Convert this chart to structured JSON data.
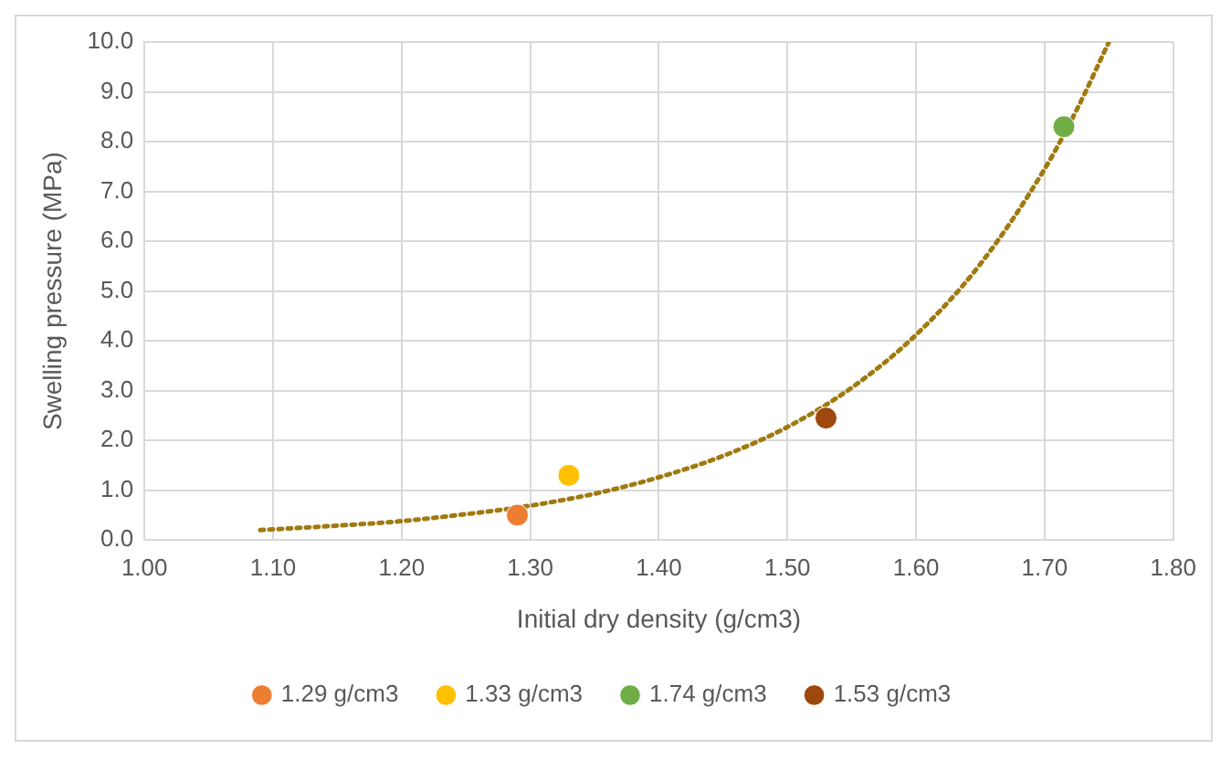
{
  "chart_data": {
    "type": "scatter",
    "xlabel": "Initial dry density (g/cm3)",
    "ylabel": "Swelling pressure (MPa)",
    "xlim": [
      1.0,
      1.8
    ],
    "xticks": [
      {
        "value": 1.0,
        "label": "1.00"
      },
      {
        "value": 1.1,
        "label": "1.10"
      },
      {
        "value": 1.2,
        "label": "1.20"
      },
      {
        "value": 1.3,
        "label": "1.30"
      },
      {
        "value": 1.4,
        "label": "1.40"
      },
      {
        "value": 1.5,
        "label": "1.50"
      },
      {
        "value": 1.6,
        "label": "1.60"
      },
      {
        "value": 1.7,
        "label": "1.70"
      },
      {
        "value": 1.8,
        "label": "1.80"
      }
    ],
    "ylim": [
      0,
      10
    ],
    "yticks": [
      {
        "value": 0,
        "label": "0.0"
      },
      {
        "value": 1,
        "label": "1.0"
      },
      {
        "value": 2,
        "label": "2.0"
      },
      {
        "value": 3,
        "label": "3.0"
      },
      {
        "value": 4,
        "label": "4.0"
      },
      {
        "value": 5,
        "label": "5.0"
      },
      {
        "value": 6,
        "label": "6.0"
      },
      {
        "value": 7,
        "label": "7.0"
      },
      {
        "value": 8,
        "label": "8.0"
      },
      {
        "value": 9,
        "label": "9.0"
      },
      {
        "value": 10,
        "label": "10.0"
      }
    ],
    "grid": true,
    "legend": "bottom",
    "marker": "circle",
    "series": [
      {
        "name": "1.29 g/cm3",
        "color": "#ed7d31",
        "x": [
          1.29
        ],
        "values": [
          0.5
        ]
      },
      {
        "name": "1.33 g/cm3",
        "color": "#ffc000",
        "x": [
          1.33
        ],
        "values": [
          1.3
        ]
      },
      {
        "name": "1.74 g/cm3",
        "color": "#70ad47",
        "x": [
          1.715
        ],
        "values": [
          8.3
        ]
      },
      {
        "name": "1.53 g/cm3",
        "color": "#9e480e",
        "x": [
          1.53
        ],
        "values": [
          2.45
        ]
      },
      {
        "type": "line",
        "color": "#a07a10",
        "line_style": "dotted",
        "marker": "none",
        "x": [
          1.09,
          1.15,
          1.2,
          1.25,
          1.3,
          1.35,
          1.4,
          1.45,
          1.5,
          1.55,
          1.6,
          1.65,
          1.7,
          1.725,
          1.75
        ],
        "values": [
          0.2,
          0.29,
          0.38,
          0.52,
          0.69,
          0.93,
          1.26,
          1.69,
          2.27,
          3.06,
          4.12,
          5.54,
          7.45,
          8.64,
          10.0
        ]
      }
    ]
  }
}
